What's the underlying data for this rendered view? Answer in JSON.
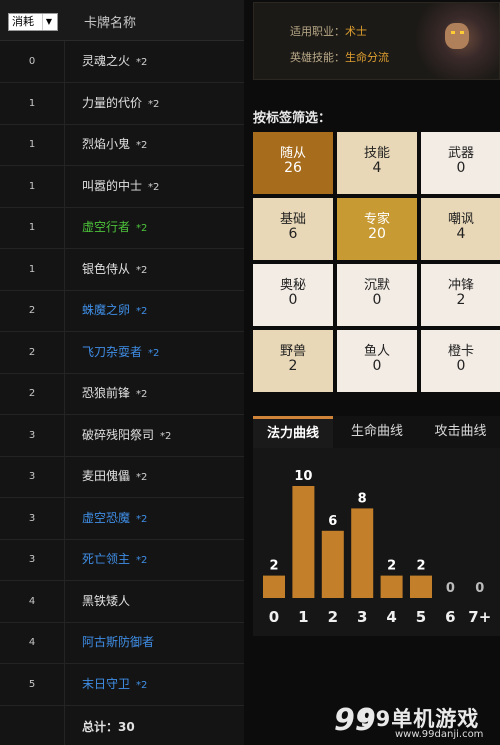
{
  "table": {
    "sort_select": "消耗",
    "name_header": "卡牌名称",
    "rows": [
      {
        "cost": "0",
        "name": "灵魂之火",
        "mult": "*2",
        "color": "white"
      },
      {
        "cost": "1",
        "name": "力量的代价",
        "mult": "*2",
        "color": "white"
      },
      {
        "cost": "1",
        "name": "烈焰小鬼",
        "mult": "*2",
        "color": "white"
      },
      {
        "cost": "1",
        "name": "叫嚣的中士",
        "mult": "*2",
        "color": "white"
      },
      {
        "cost": "1",
        "name": "虚空行者",
        "mult": "*2",
        "color": "green"
      },
      {
        "cost": "1",
        "name": "银色侍从",
        "mult": "*2",
        "color": "white"
      },
      {
        "cost": "2",
        "name": "蛛魔之卵",
        "mult": "*2",
        "color": "blue"
      },
      {
        "cost": "2",
        "name": "飞刀杂耍者",
        "mult": "*2",
        "color": "blue"
      },
      {
        "cost": "2",
        "name": "恐狼前锋",
        "mult": "*2",
        "color": "white"
      },
      {
        "cost": "3",
        "name": "破碎残阳祭司",
        "mult": "*2",
        "color": "white"
      },
      {
        "cost": "3",
        "name": "麦田傀儡",
        "mult": "*2",
        "color": "white"
      },
      {
        "cost": "3",
        "name": "虚空恐魔",
        "mult": "*2",
        "color": "blue"
      },
      {
        "cost": "3",
        "name": "死亡领主",
        "mult": "*2",
        "color": "blue"
      },
      {
        "cost": "4",
        "name": "黑铁矮人",
        "mult": "",
        "color": "white"
      },
      {
        "cost": "4",
        "name": "阿古斯防御者",
        "mult": "",
        "color": "blue"
      },
      {
        "cost": "5",
        "name": "末日守卫",
        "mult": "*2",
        "color": "blue"
      }
    ],
    "total": "总计：30"
  },
  "hero": {
    "class_label": "适用职业：",
    "class_value": "术士",
    "power_label": "英雄技能：",
    "power_value": "生命分流"
  },
  "filter": {
    "title": "按标签筛选：",
    "tags": [
      {
        "name": "随从",
        "count": "26",
        "style": "dark"
      },
      {
        "name": "技能",
        "count": "4",
        "style": "light"
      },
      {
        "name": "武器",
        "count": "0",
        "style": "pale"
      },
      {
        "name": "基础",
        "count": "6",
        "style": "light"
      },
      {
        "name": "专家",
        "count": "20",
        "style": "gold"
      },
      {
        "name": "嘲讽",
        "count": "4",
        "style": "light"
      },
      {
        "name": "奥秘",
        "count": "0",
        "style": "pale"
      },
      {
        "name": "沉默",
        "count": "0",
        "style": "pale"
      },
      {
        "name": "冲锋",
        "count": "2",
        "style": "pale"
      },
      {
        "name": "野兽",
        "count": "2",
        "style": "light"
      },
      {
        "name": "鱼人",
        "count": "0",
        "style": "pale"
      },
      {
        "name": "橙卡",
        "count": "0",
        "style": "pale"
      }
    ],
    "colors": {
      "dark": "#a86d1c",
      "gold": "#c79a34",
      "light": "#e9d8b7",
      "pale": "#f3ece4",
      "bar": "#c37f2a"
    }
  },
  "curve": {
    "tabs": [
      "法力曲线",
      "生命曲线",
      "攻击曲线"
    ],
    "active_tab": 0
  },
  "chart_data": {
    "type": "bar",
    "categories": [
      "0",
      "1",
      "2",
      "3",
      "4",
      "5",
      "6",
      "7+"
    ],
    "values": [
      2,
      10,
      6,
      8,
      2,
      2,
      0,
      0
    ],
    "ylim": [
      0,
      10
    ]
  },
  "watermark": {
    "brand": "99单机游戏",
    "url": "www.99danji.com"
  }
}
